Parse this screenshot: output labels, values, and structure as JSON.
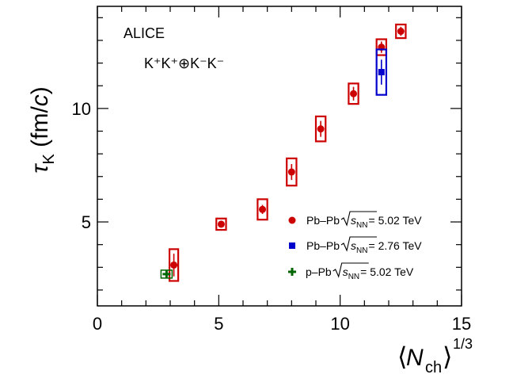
{
  "chart_data": {
    "type": "scatter",
    "title": "",
    "xlabel": "⟨N_ch⟩^1/3",
    "ylabel": "τ_K (fm/c)",
    "xlim": [
      0,
      15
    ],
    "ylim": [
      1.3,
      14.5
    ],
    "xticks": [
      0,
      5,
      10,
      15
    ],
    "yticks": [
      5,
      10
    ],
    "grid": false,
    "legend_position": "bottom-right",
    "annotations": {
      "experiment": "ALICE",
      "system": "K⁺K⁺⊕K⁻K⁻"
    },
    "series": [
      {
        "name": "Pb–Pb √sNN = 5.02 TeV",
        "legend": {
          "label": "Pb–Pb ",
          "sub": "NN",
          "energy": " = 5.02 TeV"
        },
        "color": "#cc0000",
        "marker": "circle",
        "x": [
          3.15,
          5.1,
          6.8,
          8.0,
          9.2,
          10.55,
          11.7,
          12.5
        ],
        "y": [
          3.1,
          4.9,
          5.55,
          7.2,
          9.1,
          10.65,
          12.7,
          13.4
        ],
        "stat_err": [
          0.5,
          0.15,
          0.2,
          0.35,
          0.35,
          0.3,
          0.25,
          0.2
        ],
        "syst_err": [
          0.7,
          0.25,
          0.45,
          0.6,
          0.55,
          0.45,
          0.35,
          0.3
        ],
        "x_width": [
          0.18,
          0.2,
          0.2,
          0.2,
          0.2,
          0.2,
          0.2,
          0.2
        ]
      },
      {
        "name": "Pb–Pb √sNN = 2.76 TeV",
        "legend": {
          "label": "Pb–Pb ",
          "sub": "NN",
          "energy": " = 2.76 TeV"
        },
        "color": "#0000cc",
        "marker": "square",
        "x": [
          11.7
        ],
        "y": [
          11.6
        ],
        "stat_err": [
          0.55
        ],
        "syst_err": [
          1.0
        ],
        "x_width": [
          0.2
        ]
      },
      {
        "name": "p–Pb √sNN = 5.02 TeV",
        "legend": {
          "label": "p–Pb ",
          "sub": "NN",
          "energy": " = 5.02 TeV"
        },
        "color": "#006600",
        "marker": "cross",
        "x": [
          2.85
        ],
        "y": [
          2.7
        ],
        "stat_err": [
          0.15
        ],
        "syst_err": [
          0.15
        ],
        "x_width": [
          0.2
        ]
      }
    ]
  }
}
